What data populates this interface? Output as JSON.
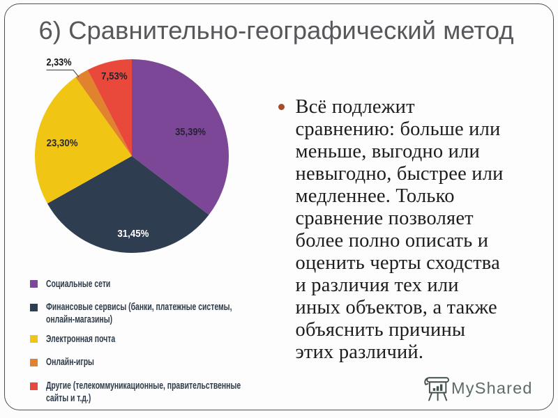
{
  "slide": {
    "title": "6) Сравнительно-географический метод"
  },
  "chart_data": {
    "type": "pie",
    "title": "",
    "start_angle_deg": 0,
    "direction": "clockwise",
    "legend_position": "bottom-left",
    "slices": [
      {
        "label": "Социальные сети",
        "value": 35.39,
        "display": "35,39%",
        "color": "#7c4796",
        "label_color": "#272235",
        "label_r": 0.655,
        "label_deg": 67.4,
        "label_w": 44
      },
      {
        "label": "Финансовые сервисы (банки, платежные системы, онлайн-магазины)",
        "value": 31.45,
        "display": "31,45%",
        "color": "#2e3e50",
        "label_color": "#ffffff",
        "label_r": 0.8,
        "label_deg": 179.0,
        "label_w": 45
      },
      {
        "label": "Электронная почта",
        "value": 23.3,
        "display": "23,30%",
        "color": "#f0c513",
        "label_color": "#272c38",
        "label_r": 0.732,
        "label_deg": 280.8,
        "label_w": 45
      },
      {
        "label": "Онлайн-игры",
        "value": 2.33,
        "display": "2,33%",
        "color": "#e0822e",
        "label_color": "#141414",
        "outside": true,
        "label_w": 36
      },
      {
        "label": "Другие (телекоммуникационные, правительственные сайты и т.д.)",
        "value": 7.53,
        "display": "7,53%",
        "color": "#e8493b",
        "label_color": "#272230",
        "label_r": 0.847,
        "label_deg": 347.7,
        "label_w": 37.5
      }
    ],
    "legend_lines": [
      "Социальные сети",
      "Финансовые сервисы (банки, платежные системы,\nонлайн-магазины)",
      "Электронная почта",
      "Онлайн-игры",
      "Другие (телекоммуникационные, правительственные\nсайты и т.д.)"
    ]
  },
  "bullet_text": {
    "lines": [
      "Всё подлежит",
      "сравнению: больше или",
      "меньше, выгодно или",
      "невыгодно, быстрее или",
      "медленнее. Только",
      "сравнение позволяет",
      "более полно описать и",
      "оценить черты сходства",
      "и различия тех или",
      "иных объектов, а также",
      "объяснить причины",
      "этих различий."
    ]
  },
  "logo": {
    "text": "MyShared",
    "icon": "flipchart-easel-icon"
  },
  "colors": {
    "slide_border": "#4e4e50",
    "title": "#57575c",
    "body_text": "#1d1d1f",
    "bullet": "#a34e28",
    "legend_text": "#2d3a49",
    "logo": "#5f6b68"
  }
}
